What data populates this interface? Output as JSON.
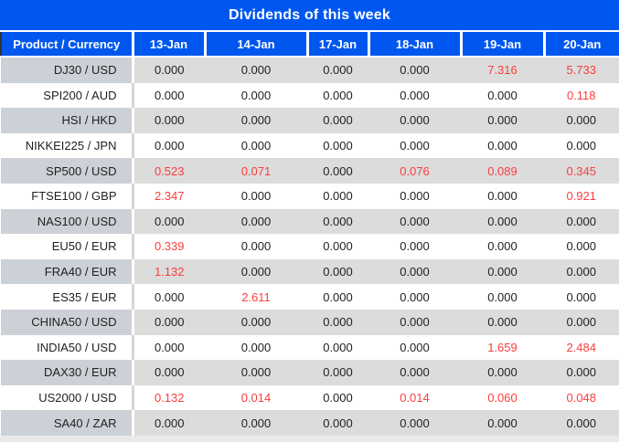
{
  "title": "Dividends of this week",
  "table": {
    "columns": [
      "Product / Currency",
      "13-Jan",
      "14-Jan",
      "17-Jan",
      "18-Jan",
      "19-Jan",
      "20-Jan"
    ],
    "rows": [
      {
        "product": "DJ30 / USD",
        "values": [
          "0.000",
          "0.000",
          "0.000",
          "0.000",
          "7.316",
          "5.733"
        ]
      },
      {
        "product": "SPI200 / AUD",
        "values": [
          "0.000",
          "0.000",
          "0.000",
          "0.000",
          "0.000",
          "0.118"
        ]
      },
      {
        "product": "HSI / HKD",
        "values": [
          "0.000",
          "0.000",
          "0.000",
          "0.000",
          "0.000",
          "0.000"
        ]
      },
      {
        "product": "NIKKEI225 / JPN",
        "values": [
          "0.000",
          "0.000",
          "0.000",
          "0.000",
          "0.000",
          "0.000"
        ]
      },
      {
        "product": "SP500 / USD",
        "values": [
          "0.523",
          "0.071",
          "0.000",
          "0.076",
          "0.089",
          "0.345"
        ]
      },
      {
        "product": "FTSE100 / GBP",
        "values": [
          "2.347",
          "0.000",
          "0.000",
          "0.000",
          "0.000",
          "0.921"
        ]
      },
      {
        "product": "NAS100 / USD",
        "values": [
          "0.000",
          "0.000",
          "0.000",
          "0.000",
          "0.000",
          "0.000"
        ]
      },
      {
        "product": "EU50 / EUR",
        "values": [
          "0.339",
          "0.000",
          "0.000",
          "0.000",
          "0.000",
          "0.000"
        ]
      },
      {
        "product": "FRA40 / EUR",
        "values": [
          "1.132",
          "0.000",
          "0.000",
          "0.000",
          "0.000",
          "0.000"
        ]
      },
      {
        "product": "ES35 / EUR",
        "values": [
          "0.000",
          "2.611",
          "0.000",
          "0.000",
          "0.000",
          "0.000"
        ]
      },
      {
        "product": "CHINA50 / USD",
        "values": [
          "0.000",
          "0.000",
          "0.000",
          "0.000",
          "0.000",
          "0.000"
        ]
      },
      {
        "product": "INDIA50 / USD",
        "values": [
          "0.000",
          "0.000",
          "0.000",
          "0.000",
          "1.659",
          "2.484"
        ]
      },
      {
        "product": "DAX30 / EUR",
        "values": [
          "0.000",
          "0.000",
          "0.000",
          "0.000",
          "0.000",
          "0.000"
        ]
      },
      {
        "product": "US2000 / USD",
        "values": [
          "0.132",
          "0.014",
          "0.000",
          "0.014",
          "0.060",
          "0.048"
        ]
      },
      {
        "product": "SA40 / ZAR",
        "values": [
          "0.000",
          "0.000",
          "0.000",
          "0.000",
          "0.000",
          "0.000"
        ]
      }
    ]
  },
  "colors": {
    "header_blue": "#0057ef",
    "header_text": "#ffffff",
    "zero_value": "#1f1f1f",
    "nonzero_value": "#fb3d3d",
    "row_alt_product_bg": "#ccd1d7",
    "row_alt_value_bg": "#dcdcdc",
    "row_bg": "#ffffff"
  }
}
